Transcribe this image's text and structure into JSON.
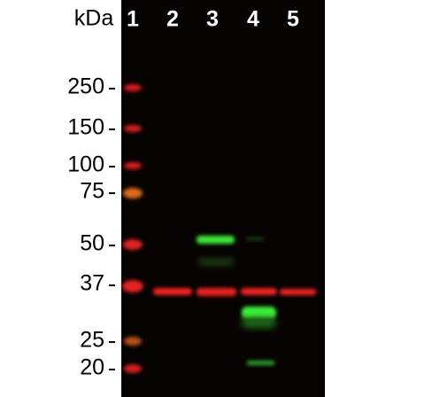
{
  "unit_label": "kDa",
  "lanes": [
    "1",
    "2",
    "3",
    "4",
    "5"
  ],
  "markers": [
    250,
    150,
    100,
    75,
    50,
    37,
    25,
    20
  ]
}
